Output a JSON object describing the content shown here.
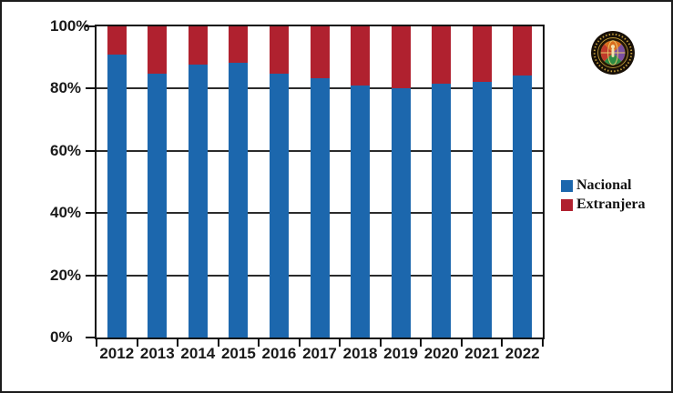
{
  "window": {
    "background": "#ffffff",
    "border_color": "#1c1c1c"
  },
  "chart_data": {
    "type": "bar",
    "stacked": true,
    "stack_mode": "percent",
    "title": "",
    "xlabel": "",
    "ylabel": "",
    "categories": [
      "2012",
      "2013",
      "2014",
      "2015",
      "2016",
      "2017",
      "2018",
      "2019",
      "2020",
      "2021",
      "2022"
    ],
    "series": [
      {
        "name": "Nacional",
        "color": "#1c67ad",
        "values": [
          90.8,
          84.9,
          87.6,
          88.3,
          84.8,
          83.3,
          81.0,
          80.1,
          81.6,
          82.3,
          84.3
        ]
      },
      {
        "name": "Extranjera",
        "color": "#b0212f",
        "values": [
          9.2,
          15.1,
          12.4,
          11.7,
          15.2,
          16.7,
          19.0,
          19.9,
          18.4,
          17.7,
          15.7
        ]
      }
    ],
    "y_ticks": [
      "0%",
      "20%",
      "40%",
      "60%",
      "80%",
      "100%"
    ],
    "y_tick_values": [
      0,
      20,
      40,
      60,
      80,
      100
    ],
    "ylim": [
      0,
      100
    ],
    "grid": true,
    "gridline_color": "#2b2b2b",
    "axis_color": "#111111",
    "legend_position": "right"
  },
  "logo": {
    "outer_ring_color": "#181007",
    "text_ring_color": "#c8a13c",
    "globe_colors": {
      "top": "#d96d1f",
      "right": "#7b4fa0",
      "bottom": "#2e8b43",
      "left": "#c03a2b"
    }
  }
}
